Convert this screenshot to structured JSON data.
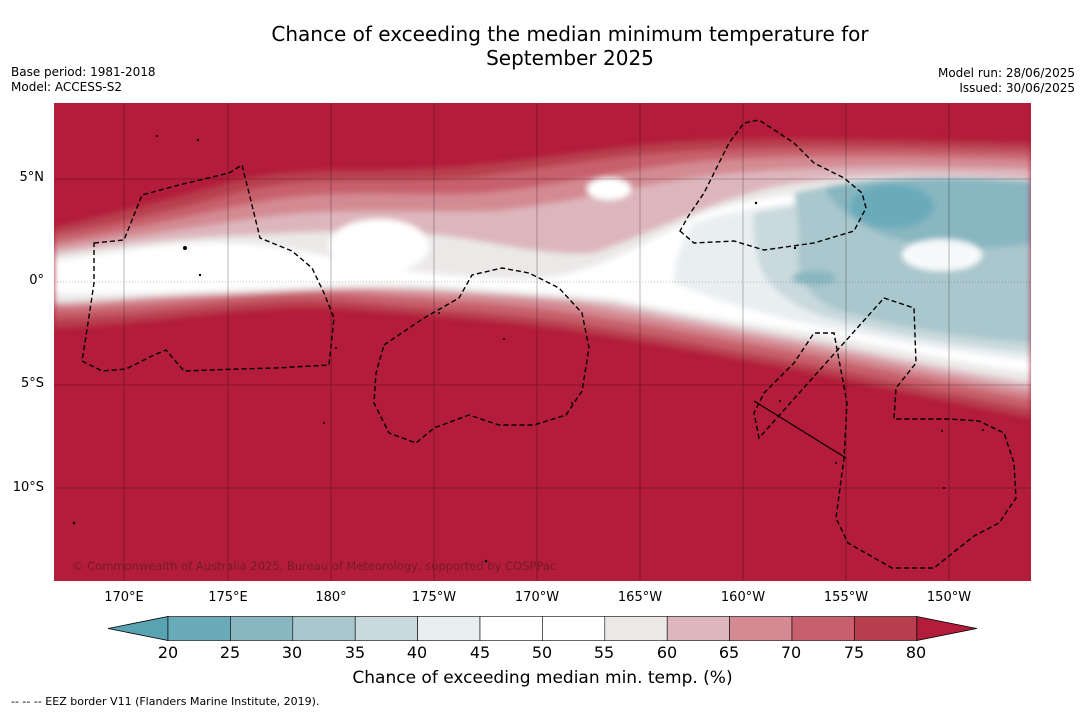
{
  "title_line1": "Chance of exceeding the median minimum temperature for",
  "title_line2": "September 2025",
  "meta": {
    "base_period": "Base period: 1981-2018",
    "model": "Model: ACCESS-S2",
    "model_run": "Model run: 28/06/2025",
    "issued": "Issued: 30/06/2025"
  },
  "map": {
    "lat_labels": [
      "5°N",
      "0°",
      "5°S",
      "10°S"
    ],
    "lon_labels": [
      "170°E",
      "175°E",
      "180°",
      "175°W",
      "170°W",
      "165°W",
      "160°W",
      "155°W",
      "150°W"
    ],
    "copyright": "© Commonwealth of Australia 2025, Bureau of Meteorology, supported by COSPPac"
  },
  "colorbar": {
    "ticks": [
      "20",
      "25",
      "30",
      "35",
      "40",
      "45",
      "50",
      "55",
      "60",
      "65",
      "70",
      "75",
      "80"
    ],
    "colors": [
      "#5aa3b2",
      "#6aabba",
      "#88b6c1",
      "#a9c7cd",
      "#c9d9dd",
      "#e9eff1",
      "#ffffff",
      "#ffffff",
      "#ebe9e8",
      "#ddb6bc",
      "#d48a93",
      "#c7606c",
      "#b8404e",
      "#b31c3a"
    ],
    "label": "Chance of exceeding median min. temp. (%)"
  },
  "footnote": "--  --  -- EEZ border V11 (Flanders Marine Institute, 2019)."
}
